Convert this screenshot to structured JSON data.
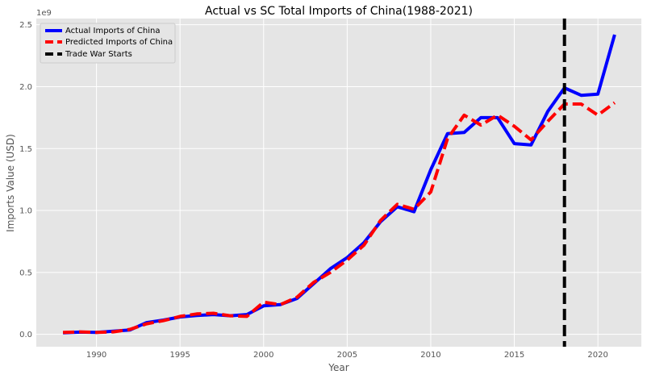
{
  "chart_data": {
    "type": "line",
    "title": "Actual vs SC Total Imports of China(1988-2021)",
    "xlabel": "Year",
    "ylabel": "Imports Value (USD)",
    "y_scale_note": "1e9",
    "x_range": [
      1986.4,
      2022.6
    ],
    "y_range": [
      -0.1,
      2.55
    ],
    "x_ticks": [
      1990,
      1995,
      2000,
      2005,
      2010,
      2015,
      2020
    ],
    "y_ticks": [
      0.0,
      0.5,
      1.0,
      1.5,
      2.0,
      2.5
    ],
    "y_tick_labels": [
      "0.0",
      "0.5",
      "1.0",
      "1.5",
      "2.0",
      "2.5"
    ],
    "grid": true,
    "legend_position": "top-left",
    "colors": {
      "actual": "#0000ff",
      "predicted": "#ff0000",
      "trade_war": "#000000",
      "plot_bg": "#e5e5e5",
      "grid": "#ffffff"
    },
    "x": [
      1988,
      1989,
      1990,
      1991,
      1992,
      1993,
      1994,
      1995,
      1996,
      1997,
      1998,
      1999,
      2000,
      2001,
      2002,
      2003,
      2004,
      2005,
      2006,
      2007,
      2008,
      2009,
      2010,
      2011,
      2012,
      2013,
      2014,
      2015,
      2016,
      2017,
      2018,
      2019,
      2020,
      2021
    ],
    "series": [
      {
        "name": "Actual Imports of China",
        "style": "solid",
        "values": [
          0.012,
          0.018,
          0.015,
          0.025,
          0.035,
          0.095,
          0.115,
          0.14,
          0.152,
          0.16,
          0.15,
          0.16,
          0.23,
          0.24,
          0.29,
          0.41,
          0.53,
          0.62,
          0.74,
          0.91,
          1.03,
          0.99,
          1.33,
          1.62,
          1.63,
          1.75,
          1.75,
          1.54,
          1.53,
          1.8,
          1.99,
          1.93,
          1.94,
          2.42
        ]
      },
      {
        "name": "Predicted Imports of China",
        "style": "dashed",
        "values": [
          0.015,
          0.02,
          0.015,
          0.02,
          0.04,
          0.085,
          0.11,
          0.145,
          0.165,
          0.17,
          0.15,
          0.145,
          0.26,
          0.24,
          0.3,
          0.42,
          0.5,
          0.6,
          0.72,
          0.92,
          1.05,
          1.01,
          1.15,
          1.58,
          1.77,
          1.69,
          1.77,
          1.68,
          1.57,
          1.72,
          1.86,
          1.86,
          1.77,
          1.87
        ]
      }
    ],
    "vertical_line": {
      "name": "Trade War Starts",
      "x": 2018
    }
  }
}
